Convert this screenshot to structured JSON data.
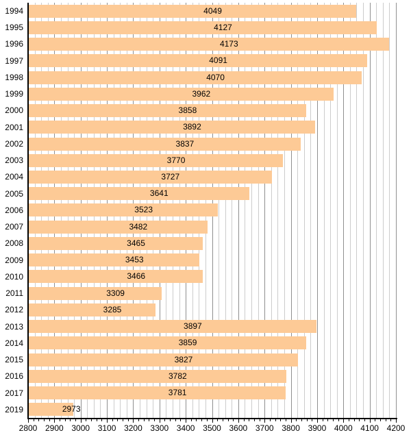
{
  "chart_data": {
    "type": "bar",
    "orientation": "horizontal",
    "title": "",
    "categories": [
      "1994",
      "1995",
      "1996",
      "1997",
      "1998",
      "1999",
      "2000",
      "2001",
      "2002",
      "2003",
      "2004",
      "2005",
      "2006",
      "2007",
      "2008",
      "2009",
      "2010",
      "2011",
      "2012",
      "2013",
      "2014",
      "2015",
      "2016",
      "2017",
      "2019"
    ],
    "values": [
      4049,
      4127,
      4173,
      4091,
      4070,
      3962,
      3858,
      3892,
      3837,
      3770,
      3727,
      3641,
      3523,
      3482,
      3465,
      3453,
      3466,
      3309,
      3285,
      3897,
      3859,
      3827,
      3782,
      3781,
      2973
    ],
    "xlabel": "",
    "ylabel": "",
    "xlim": [
      2800,
      4200
    ],
    "x_tick_labels": [
      "2800",
      "2900",
      "3000",
      "3100",
      "3200",
      "3300",
      "3400",
      "3500",
      "3600",
      "3700",
      "3800",
      "3900",
      "4000",
      "4100",
      "4200"
    ],
    "x_major_step": 100,
    "x_minor_grid_step": 25,
    "x_minor_tick_step": 20,
    "grid": "vertical, minor and major",
    "legend": "none",
    "bar_labels_shown": true,
    "colors": {
      "bar_fill": "#fdca96",
      "minor_gridline": "#cccccc",
      "major_gridline": "#8f8f8f",
      "axis": "#000000",
      "text": "#000000",
      "background": "#ffffff"
    }
  }
}
